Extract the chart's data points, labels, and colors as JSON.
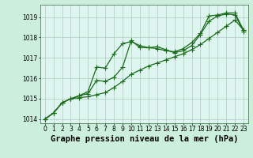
{
  "title": "Graphe pression niveau de la mer (hPa)",
  "background_color": "#cceedd",
  "plot_bg_color": "#dff5f0",
  "line_color": "#1a6b1a",
  "grid_color": "#aaccbb",
  "xlim": [
    -0.5,
    23.5
  ],
  "ylim": [
    1013.8,
    1019.6
  ],
  "yticks": [
    1014,
    1015,
    1016,
    1017,
    1018,
    1019
  ],
  "xticks": [
    0,
    1,
    2,
    3,
    4,
    5,
    6,
    7,
    8,
    9,
    10,
    11,
    12,
    13,
    14,
    15,
    16,
    17,
    18,
    19,
    20,
    21,
    22,
    23
  ],
  "series": [
    [
      1014.0,
      1014.3,
      1014.8,
      1015.0,
      1015.15,
      1015.35,
      1016.55,
      1016.5,
      1017.2,
      1017.7,
      1017.8,
      1017.6,
      1017.5,
      1017.45,
      1017.35,
      1017.3,
      1017.45,
      1017.75,
      1018.2,
      1019.05,
      1019.1,
      1019.2,
      1019.2,
      1018.35
    ],
    [
      1014.0,
      1014.3,
      1014.8,
      1015.0,
      1015.15,
      1015.25,
      1015.9,
      1015.85,
      1016.05,
      1016.55,
      1017.85,
      1017.5,
      1017.5,
      1017.55,
      1017.4,
      1017.25,
      1017.35,
      1017.6,
      1018.15,
      1018.8,
      1019.05,
      1019.15,
      1019.1,
      1018.3
    ],
    [
      1014.0,
      1014.3,
      1014.8,
      1015.0,
      1015.05,
      1015.1,
      1015.2,
      1015.3,
      1015.55,
      1015.85,
      1016.2,
      1016.4,
      1016.6,
      1016.75,
      1016.9,
      1017.05,
      1017.2,
      1017.4,
      1017.65,
      1017.95,
      1018.25,
      1018.55,
      1018.85,
      1018.35
    ]
  ],
  "marker": "+",
  "markersize": 4,
  "linewidth": 0.9,
  "title_fontsize": 7.5,
  "tick_fontsize": 5.5
}
